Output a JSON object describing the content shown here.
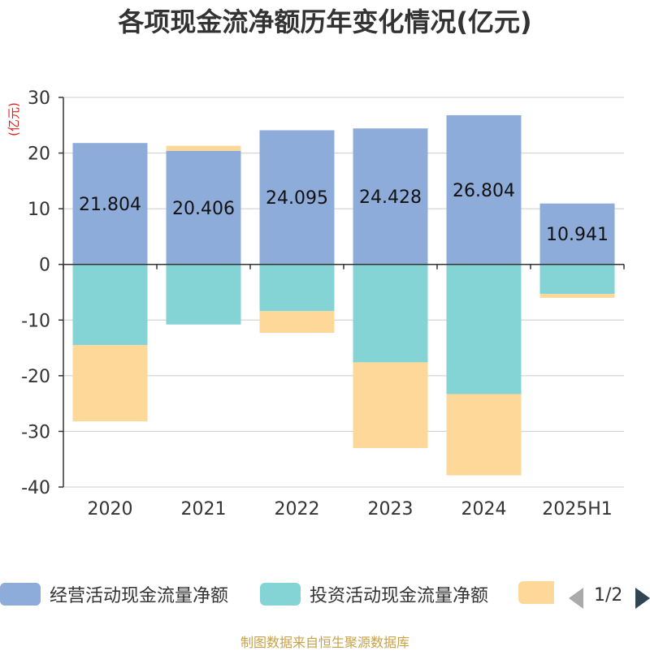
{
  "chart_data": {
    "type": "bar",
    "stacked": true,
    "title": "各项现金流净额历年变化情况(亿元)",
    "ylabel": "(亿元)",
    "ylim": [
      -40,
      30
    ],
    "yticks": [
      30,
      20,
      10,
      0,
      -10,
      -20,
      -30,
      -40
    ],
    "categories": [
      "2020",
      "2021",
      "2022",
      "2023",
      "2024",
      "2025H1"
    ],
    "grid": true,
    "legend_position": "bottom",
    "series": [
      {
        "name": "经营活动现金流量净额",
        "color": "#8eacda",
        "values": [
          21.804,
          20.406,
          24.095,
          24.428,
          26.804,
          10.941
        ],
        "show_labels": true
      },
      {
        "name": "投资活动现金流量净额",
        "color": "#84d4d6",
        "values": [
          -14.5,
          -10.8,
          -8.4,
          -17.6,
          -23.3,
          -5.3
        ],
        "show_labels": false
      },
      {
        "name": "",
        "color": "#fed898",
        "values": [
          -13.7,
          0.9,
          -3.9,
          -15.4,
          -14.6,
          -0.7
        ],
        "show_labels": false
      }
    ]
  },
  "legend": {
    "page_indicator": "1/2"
  },
  "source_text": "制图数据来自恒生聚源数据库"
}
